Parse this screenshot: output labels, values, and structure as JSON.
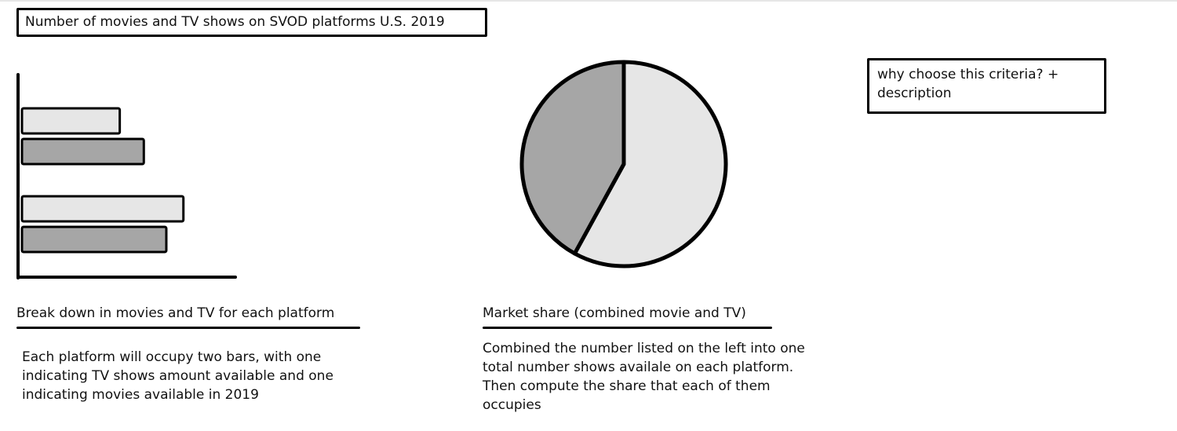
{
  "title": "Number of movies and TV shows on SVOD platforms U.S. 2019",
  "note": {
    "text": "why choose this criteria? + description"
  },
  "bar_section": {
    "caption": "Break down in movies and TV for each platform",
    "description": "Each platform will occupy two bars, with one indicating TV shows amount available and one indicating movies available in 2019"
  },
  "pie_section": {
    "caption": "Market share (combined movie and TV)",
    "description": "Combined the number listed on the left into one total number shows availale on each platform. Then compute the share that each of them occupies"
  },
  "chart_data": [
    {
      "type": "bar",
      "orientation": "horizontal",
      "series": [
        {
          "values": [
            126,
            208
          ]
        },
        {
          "values": [
            157,
            186
          ]
        }
      ],
      "colors": [
        "#e6e6e6",
        "#a6a6a6"
      ],
      "xlim": [
        0,
        275
      ]
    },
    {
      "type": "pie",
      "values": [
        58,
        42
      ],
      "colors": [
        "#e6e6e6",
        "#a6a6a6"
      ]
    }
  ]
}
